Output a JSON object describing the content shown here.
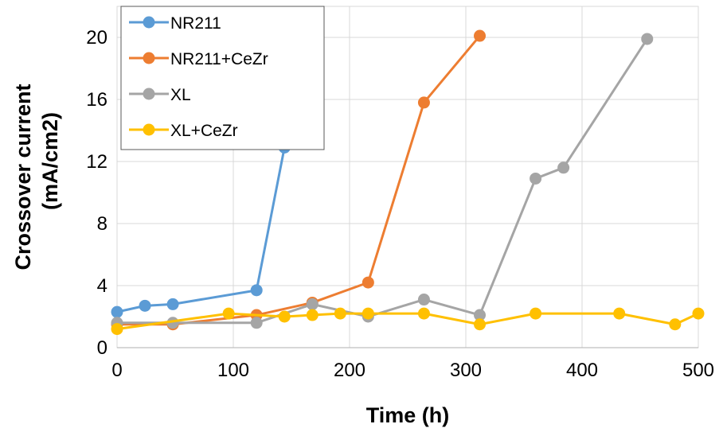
{
  "chart_data": {
    "type": "line",
    "title": "",
    "xlabel": "Time (h)",
    "ylabel_line1": "Crossover current",
    "ylabel_line2": "(mA/cm2)",
    "xlim": [
      0,
      500
    ],
    "ylim": [
      0,
      22
    ],
    "xticks": [
      0,
      100,
      200,
      300,
      400,
      500
    ],
    "yticks": [
      0,
      4,
      8,
      12,
      16,
      20
    ],
    "grid": true,
    "legend_position": "top-left",
    "series": [
      {
        "name": "NR211",
        "color": "#5b9bd5",
        "points": [
          [
            0,
            2.3
          ],
          [
            24,
            2.7
          ],
          [
            48,
            2.8
          ],
          [
            120,
            3.7
          ],
          [
            144,
            12.9
          ]
        ]
      },
      {
        "name": "NR211+CeZr",
        "color": "#ed7d31",
        "points": [
          [
            0,
            1.5
          ],
          [
            48,
            1.5
          ],
          [
            120,
            2.1
          ],
          [
            168,
            2.9
          ],
          [
            216,
            4.2
          ],
          [
            264,
            15.8
          ],
          [
            312,
            20.1
          ]
        ]
      },
      {
        "name": "XL",
        "color": "#a5a5a5",
        "points": [
          [
            0,
            1.6
          ],
          [
            48,
            1.6
          ],
          [
            120,
            1.6
          ],
          [
            168,
            2.8
          ],
          [
            216,
            2.0
          ],
          [
            264,
            3.1
          ],
          [
            312,
            2.1
          ],
          [
            360,
            10.9
          ],
          [
            384,
            11.6
          ],
          [
            456,
            19.9
          ]
        ]
      },
      {
        "name": "XL+CeZr",
        "color": "#ffc000",
        "points": [
          [
            0,
            1.2
          ],
          [
            96,
            2.2
          ],
          [
            144,
            2.0
          ],
          [
            168,
            2.1
          ],
          [
            192,
            2.2
          ],
          [
            216,
            2.2
          ],
          [
            264,
            2.2
          ],
          [
            312,
            1.5
          ],
          [
            360,
            2.2
          ],
          [
            432,
            2.2
          ],
          [
            480,
            1.5
          ],
          [
            500,
            2.2
          ]
        ]
      }
    ]
  }
}
